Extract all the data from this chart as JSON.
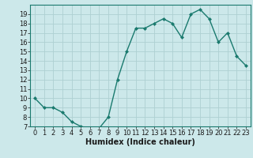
{
  "xlabel": "Humidex (Indice chaleur)",
  "x": [
    0,
    1,
    2,
    3,
    4,
    5,
    6,
    7,
    8,
    9,
    10,
    11,
    12,
    13,
    14,
    15,
    16,
    17,
    18,
    19,
    20,
    21,
    22,
    23
  ],
  "y": [
    10,
    9,
    9,
    8.5,
    7.5,
    7,
    6.8,
    6.8,
    8,
    12,
    15,
    17.5,
    17.5,
    18,
    18.5,
    18,
    16.5,
    19,
    19.5,
    18.5,
    16,
    17,
    14.5,
    13.5
  ],
  "line_color": "#1a7a6e",
  "marker": "D",
  "marker_size": 2.0,
  "bg_color": "#cce8ea",
  "grid_color": "#aed0d2",
  "ylim_min": 7,
  "ylim_max": 20,
  "yticks": [
    7,
    8,
    9,
    10,
    11,
    12,
    13,
    14,
    15,
    16,
    17,
    18,
    19
  ],
  "xlim_min": -0.5,
  "xlim_max": 23.5,
  "xticks": [
    0,
    1,
    2,
    3,
    4,
    5,
    6,
    7,
    8,
    9,
    10,
    11,
    12,
    13,
    14,
    15,
    16,
    17,
    18,
    19,
    20,
    21,
    22,
    23
  ],
  "tick_fontsize": 6,
  "xlabel_fontsize": 7,
  "xlabel_bold": true
}
